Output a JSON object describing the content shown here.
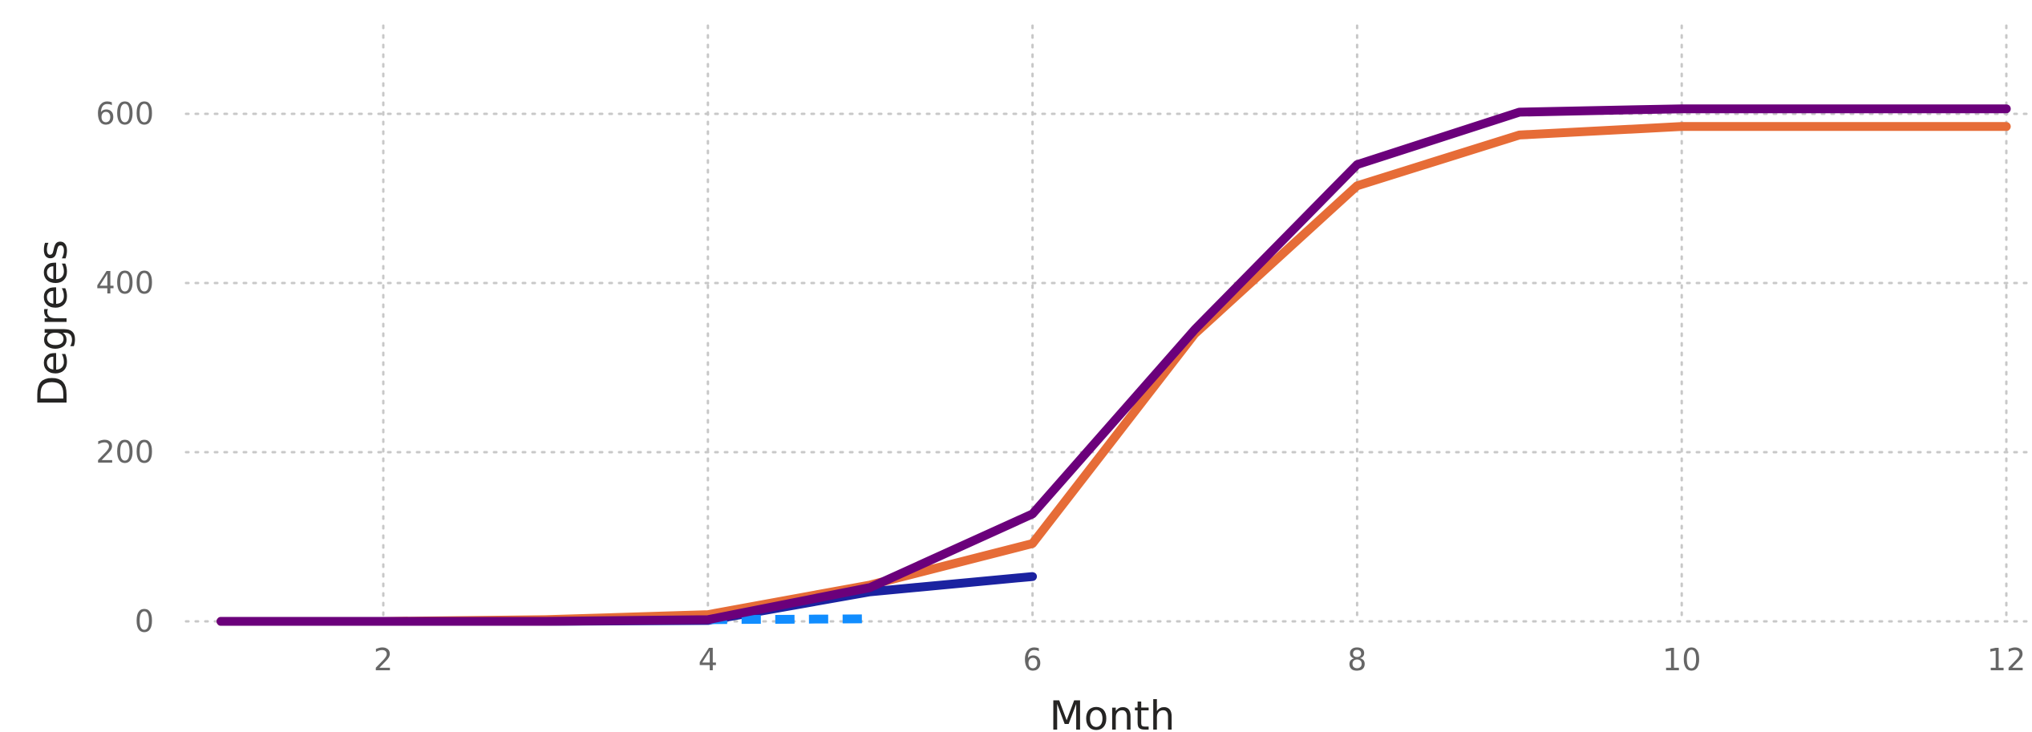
{
  "chart_data": {
    "type": "line",
    "xlabel": "Month",
    "ylabel": "Degrees",
    "xlim": [
      0.4,
      12.05
    ],
    "ylim": [
      -10,
      700
    ],
    "xticks": [
      2,
      4,
      6,
      8,
      10,
      12
    ],
    "yticks": [
      0,
      200,
      400,
      600
    ],
    "grid": true,
    "series": [
      {
        "color": "#1B22A0",
        "dash": "solid",
        "x": [
          1,
          2,
          3,
          4,
          5,
          6
        ],
        "values": [
          0,
          0,
          0,
          1,
          35,
          53
        ]
      },
      {
        "color": "#118DFF",
        "dash": "dashed",
        "x": [
          4,
          5
        ],
        "values": [
          2,
          3
        ]
      },
      {
        "color": "#E66C37",
        "dash": "solid",
        "x": [
          1,
          2,
          3,
          4,
          5,
          6,
          7,
          8,
          9,
          10,
          11,
          12
        ],
        "values": [
          0,
          0,
          2,
          8,
          43,
          92,
          340,
          515,
          575,
          585,
          585,
          585
        ]
      },
      {
        "color": "#6B007B",
        "dash": "solid",
        "x": [
          1,
          2,
          3,
          4,
          5,
          6,
          7,
          8,
          9,
          10,
          11,
          12
        ],
        "values": [
          0,
          0,
          0,
          2,
          40,
          127,
          345,
          540,
          602,
          606,
          606,
          606
        ]
      }
    ]
  }
}
